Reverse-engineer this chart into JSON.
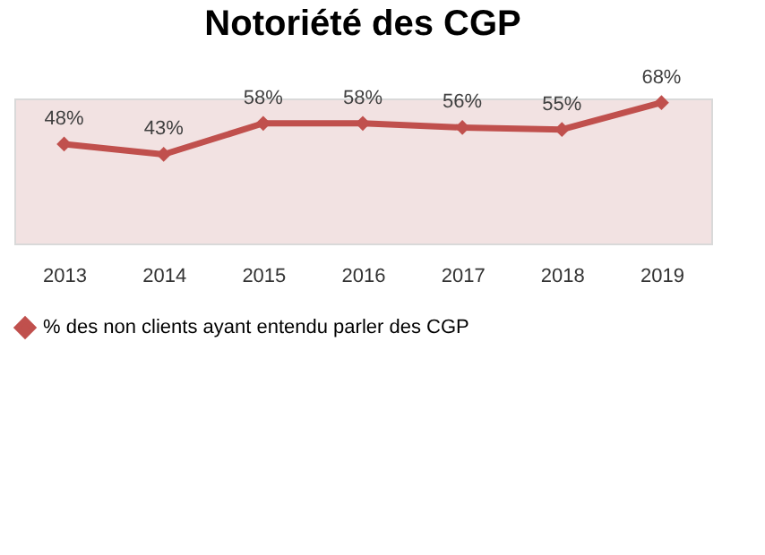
{
  "chart_data": {
    "type": "line",
    "title": "Notoriété des CGP",
    "categories": [
      "2013",
      "2014",
      "2015",
      "2016",
      "2017",
      "2018",
      "2019"
    ],
    "series": [
      {
        "name": "% des non clients ayant entendu parler des CGP",
        "color": "#c0504d",
        "values": [
          48,
          43,
          58,
          58,
          56,
          55,
          68
        ],
        "value_labels": [
          "48%",
          "43%",
          "58%",
          "58%",
          "56%",
          "55%",
          "68%"
        ]
      }
    ],
    "legend": "bottom",
    "marker": "diamond",
    "line_style": "solid",
    "grid": false
  }
}
